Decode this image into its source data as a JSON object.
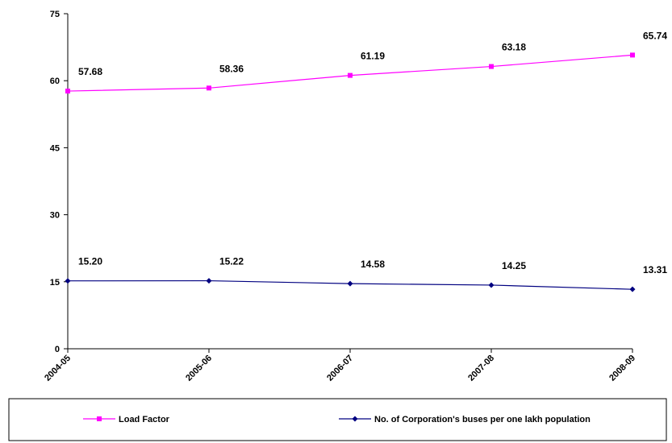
{
  "chart_data": {
    "type": "line",
    "categories": [
      "2004-05",
      "2005-06",
      "2006-07",
      "2007-08",
      "2008-09"
    ],
    "ylim": [
      0,
      75
    ],
    "yticks": [
      0,
      15,
      30,
      45,
      60,
      75
    ],
    "grid": false,
    "legend_position": "bottom",
    "series": [
      {
        "name": "Load Factor",
        "color": "#ff00ff",
        "marker": "square",
        "values": [
          57.68,
          58.36,
          61.19,
          63.18,
          65.74
        ],
        "labels": [
          "57.68",
          "58.36",
          "61.19",
          "63.18",
          "65.74"
        ]
      },
      {
        "name": "No. of Corporation's buses per one lakh population",
        "color": "#000080",
        "marker": "diamond",
        "values": [
          15.2,
          15.22,
          14.58,
          14.25,
          13.31
        ],
        "labels": [
          "15.20",
          "15.22",
          "14.58",
          "14.25",
          "13.31"
        ]
      }
    ]
  }
}
